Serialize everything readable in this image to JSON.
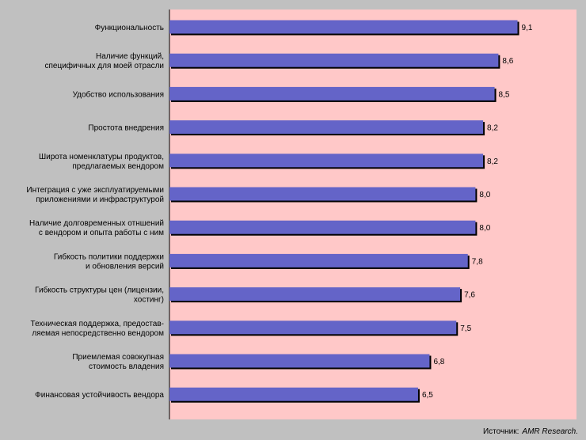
{
  "colors": {
    "background": "#c0c0c0",
    "plot_area": "#ffc8c8",
    "bar": "#6464c8",
    "bar_shadow": "#000000"
  },
  "source": {
    "prefix": "Источник:",
    "name": "AMR Research."
  },
  "chart_data": {
    "type": "bar",
    "orientation": "horizontal",
    "title": "",
    "xlabel": "",
    "ylabel": "",
    "xlim": [
      0,
      10
    ],
    "grid": false,
    "legend": "none",
    "categories": [
      "Функциональность",
      "Наличие функций,\nспецифичных для моей отрасли",
      "Удобство использования",
      "Простота внедрения",
      "Широта номенклатуры продуктов,\nпредлагаемых вендором",
      "Интеграция с уже эксплуатируемыми\nприложениями и инфраструктурой",
      "Наличие долговременных отншений\nс вендором и опыта работы с ним",
      "Гибкость политики поддержки\nи обновления версий",
      "Гибкость структуры цен (лицензии,\nхостинг)",
      "Техническая поддержка, предостав-\nляемая непосредственно вендором",
      "Приемлемая совокупная\nстоимость владения",
      "Финансовая устойчивость вендора"
    ],
    "values": [
      9.1,
      8.6,
      8.5,
      8.2,
      8.2,
      8.0,
      8.0,
      7.8,
      7.6,
      7.5,
      6.8,
      6.5
    ],
    "value_labels": [
      "9,1",
      "8,6",
      "8,5",
      "8,2",
      "8,2",
      "8,0",
      "8,0",
      "7,8",
      "7,6",
      "7,5",
      "6,8",
      "6,5"
    ]
  }
}
